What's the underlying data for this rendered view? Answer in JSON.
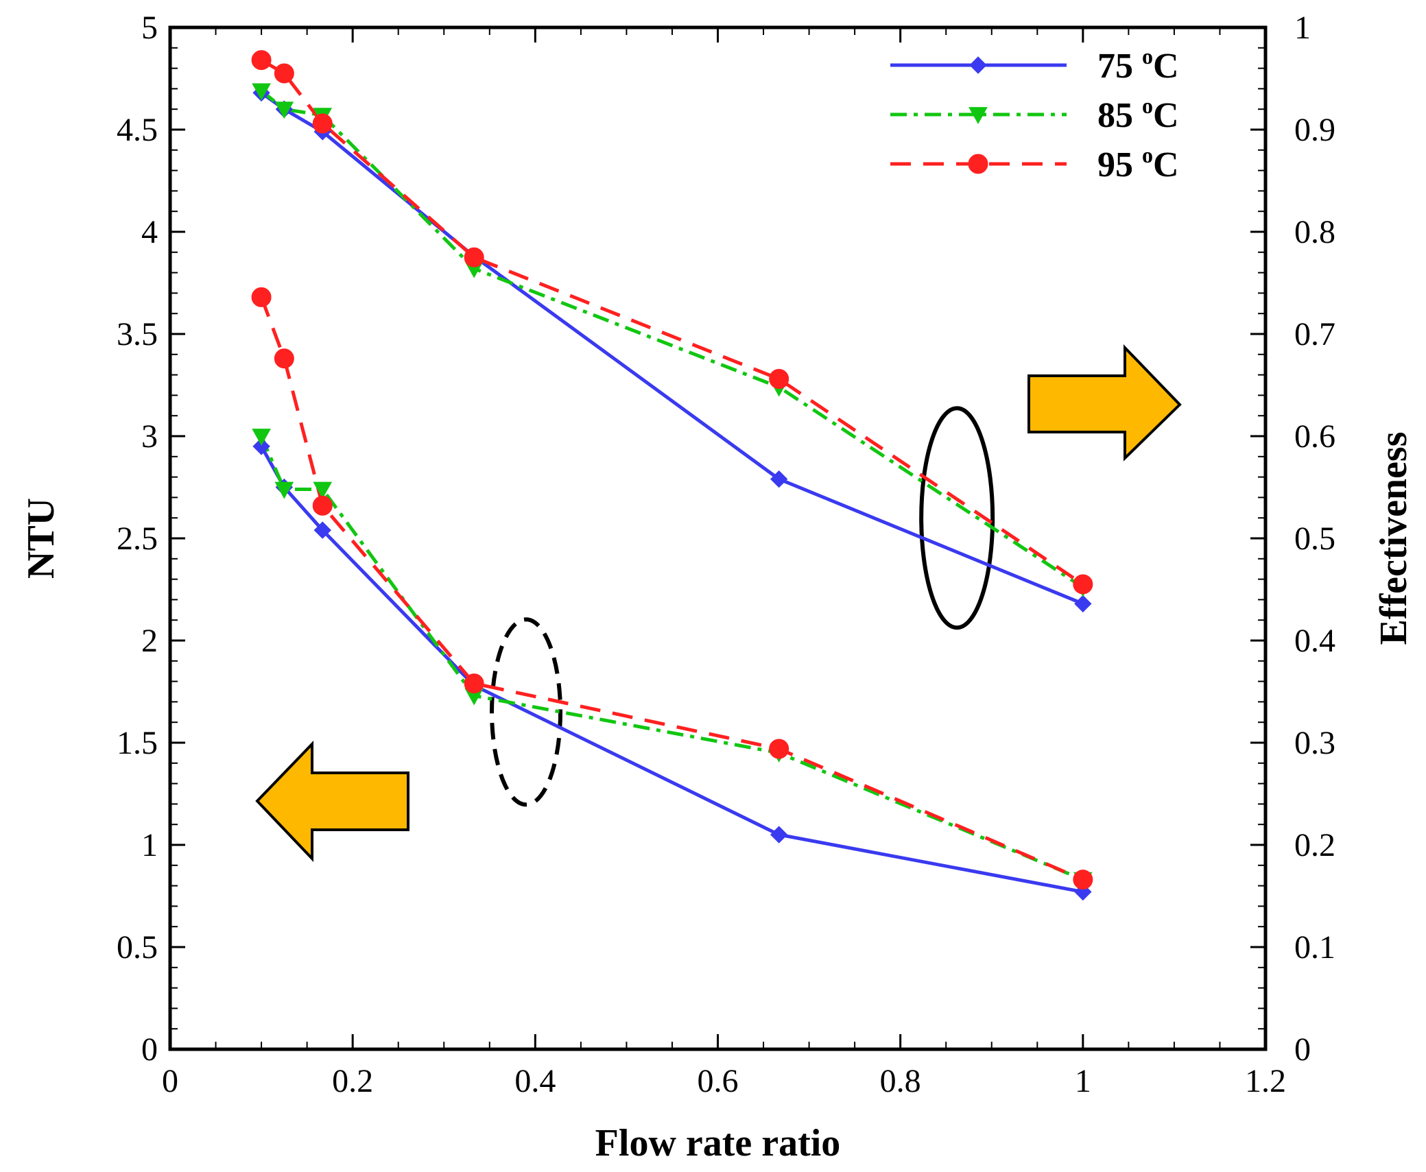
{
  "chart_data": {
    "type": "line",
    "title": "",
    "xlabel": "Flow rate ratio",
    "ylabel": "NTU",
    "y2label": "Effectiveness",
    "xlim": [
      0,
      1.2
    ],
    "ylim": [
      0,
      5
    ],
    "y2lim": [
      0,
      1
    ],
    "x_ticks": [
      "0",
      "0.2",
      "0.4",
      "0.6",
      "0.8",
      "1",
      "1.2"
    ],
    "y_ticks": [
      "0",
      "0.5",
      "1",
      "1.5",
      "2",
      "2.5",
      "3",
      "3.5",
      "4",
      "4.5",
      "5"
    ],
    "y2_ticks": [
      "0",
      "0.1",
      "0.2",
      "0.3",
      "0.4",
      "0.5",
      "0.6",
      "0.7",
      "0.8",
      "0.9",
      "1"
    ],
    "grid": false,
    "legend_position": "top-right",
    "x": [
      0.1,
      0.125,
      0.167,
      0.333,
      0.667,
      1.0
    ],
    "series": [
      {
        "name": "75",
        "unit": "oC",
        "color": "#3a3af0",
        "marker": "diamond",
        "dash": "solid",
        "axis": "NTU",
        "values": [
          2.95,
          2.75,
          2.54,
          1.78,
          1.05,
          0.77
        ]
      },
      {
        "name": "85",
        "unit": "oC",
        "color": "#11c611",
        "marker": "triangle-down",
        "dash": "dashdot",
        "axis": "NTU",
        "values": [
          3.0,
          2.74,
          2.74,
          1.73,
          1.45,
          0.83
        ]
      },
      {
        "name": "95",
        "unit": "oC",
        "color": "#ff2020",
        "marker": "circle",
        "dash": "dashed",
        "axis": "NTU",
        "values": [
          3.68,
          3.38,
          2.66,
          1.79,
          1.47,
          0.83
        ]
      },
      {
        "name": "75",
        "unit": "oC",
        "color": "#3a3af0",
        "marker": "diamond",
        "dash": "solid",
        "axis": "Effectiveness",
        "values": [
          0.936,
          0.92,
          0.898,
          0.776,
          0.558,
          0.436
        ]
      },
      {
        "name": "85",
        "unit": "oC",
        "color": "#11c611",
        "marker": "triangle-down",
        "dash": "dashdot",
        "axis": "Effectiveness",
        "values": [
          0.938,
          0.92,
          0.914,
          0.764,
          0.648,
          0.452
        ]
      },
      {
        "name": "95",
        "unit": "oC",
        "color": "#ff2020",
        "marker": "circle",
        "dash": "dashed",
        "axis": "Effectiveness",
        "values": [
          0.968,
          0.955,
          0.906,
          0.775,
          0.656,
          0.455
        ]
      }
    ],
    "annotations": [
      {
        "type": "ellipse",
        "style": "solid",
        "group": "Effectiveness",
        "center": [
          0.862,
          0.52
        ]
      },
      {
        "type": "ellipse",
        "style": "dashed",
        "group": "NTU",
        "center": [
          0.39,
          1.65
        ]
      },
      {
        "type": "arrow",
        "direction": "right",
        "color": "#ffb800",
        "meaning": "Effectiveness axis"
      },
      {
        "type": "arrow",
        "direction": "left",
        "color": "#ffb800",
        "meaning": "NTU axis"
      }
    ]
  }
}
